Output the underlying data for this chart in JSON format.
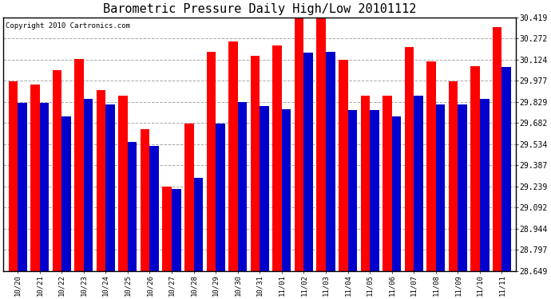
{
  "title": "Barometric Pressure Daily High/Low 20101112",
  "copyright": "Copyright 2010 Cartronics.com",
  "labels": [
    "10/20",
    "10/21",
    "10/22",
    "10/23",
    "10/24",
    "10/25",
    "10/26",
    "10/27",
    "10/28",
    "10/29",
    "10/30",
    "10/31",
    "11/01",
    "11/02",
    "11/03",
    "11/04",
    "11/05",
    "11/06",
    "11/07",
    "11/08",
    "11/09",
    "11/10",
    "11/11"
  ],
  "highs": [
    29.97,
    29.95,
    30.05,
    30.13,
    29.91,
    29.87,
    29.64,
    29.24,
    29.68,
    30.18,
    30.25,
    30.15,
    30.22,
    30.42,
    30.41,
    30.12,
    29.87,
    29.87,
    30.21,
    30.11,
    29.97,
    30.08,
    30.35
  ],
  "lows": [
    29.82,
    29.82,
    29.73,
    29.85,
    29.81,
    29.55,
    29.52,
    29.22,
    29.3,
    29.68,
    29.83,
    29.8,
    29.78,
    30.17,
    30.18,
    29.77,
    29.77,
    29.73,
    29.87,
    29.81,
    29.81,
    29.85,
    30.07
  ],
  "ymin": 28.649,
  "ymax": 30.419,
  "yticks": [
    28.649,
    28.797,
    28.944,
    29.092,
    29.239,
    29.387,
    29.534,
    29.682,
    29.829,
    29.977,
    30.124,
    30.272,
    30.419
  ],
  "high_color": "#ff0000",
  "low_color": "#0000cc",
  "bg_color": "#ffffff",
  "plot_bg_color": "#ffffff",
  "grid_color": "#999999",
  "title_fontsize": 11,
  "copyright_fontsize": 6.5
}
